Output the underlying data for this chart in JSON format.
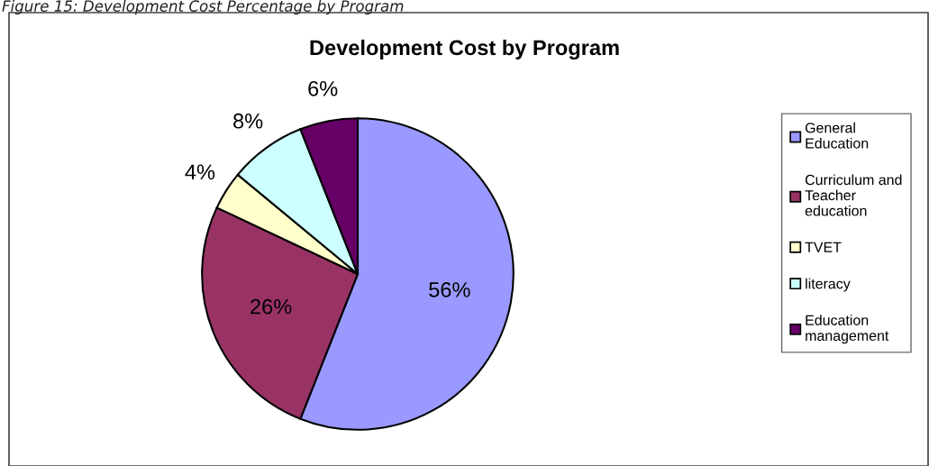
{
  "chart_data": {
    "type": "pie",
    "title": "Development Cost by Program",
    "annotations": [
      "Figure 15: Development Cost Percentage by Program"
    ],
    "categories": [
      "General Education",
      "Curriculum and Teacher education",
      "TVET",
      "literacy",
      "Education management"
    ],
    "values": [
      56,
      26,
      4,
      8,
      6
    ],
    "colors": [
      "#9999ff",
      "#993366",
      "#ffffcc",
      "#ccffff",
      "#660066"
    ],
    "value_labels": [
      "56%",
      "26%",
      "4%",
      "8%",
      "6%"
    ],
    "legend": "right"
  }
}
